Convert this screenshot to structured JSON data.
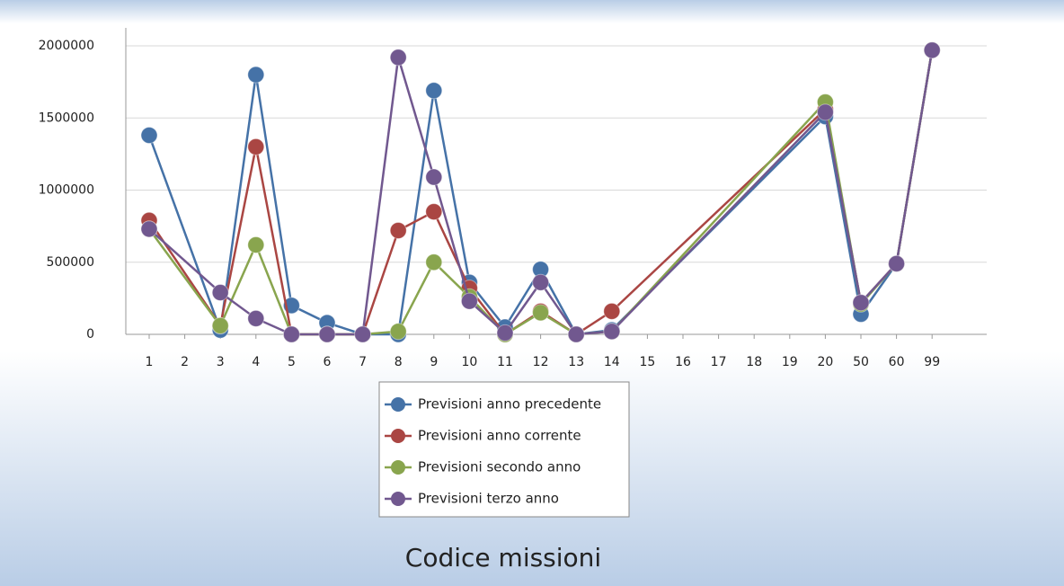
{
  "chart_data": {
    "type": "line",
    "xlabel": "Codice missioni",
    "categories": [
      "1",
      "2",
      "3",
      "4",
      "5",
      "6",
      "7",
      "8",
      "9",
      "10",
      "11",
      "12",
      "13",
      "14",
      "15",
      "16",
      "17",
      "18",
      "19",
      "20",
      "50",
      "60",
      "99"
    ],
    "ylim": [
      0,
      2000000
    ],
    "yticks": [
      0,
      500000,
      1000000,
      1500000,
      2000000
    ],
    "grid": true,
    "connect_gaps": true,
    "series": [
      {
        "name": "Previsioni anno precedente",
        "color": "#4572a7",
        "values": [
          1380000,
          null,
          30000,
          1800000,
          200000,
          80000,
          0,
          0,
          1690000,
          360000,
          50000,
          450000,
          0,
          30000,
          null,
          null,
          null,
          null,
          null,
          1510000,
          140000,
          490000,
          1970000
        ]
      },
      {
        "name": "Previsioni anno corrente",
        "color": "#aa4643",
        "values": [
          790000,
          null,
          60000,
          1300000,
          0,
          0,
          0,
          720000,
          850000,
          320000,
          0,
          160000,
          0,
          160000,
          null,
          null,
          null,
          null,
          null,
          1560000,
          220000,
          490000,
          1970000
        ]
      },
      {
        "name": "Previsioni secondo anno",
        "color": "#89a54e",
        "values": [
          730000,
          null,
          60000,
          620000,
          0,
          0,
          0,
          20000,
          500000,
          260000,
          0,
          150000,
          0,
          20000,
          null,
          null,
          null,
          null,
          null,
          1610000,
          210000,
          490000,
          1970000
        ]
      },
      {
        "name": "Previsioni terzo anno",
        "color": "#71588f",
        "values": [
          730000,
          null,
          290000,
          110000,
          0,
          0,
          0,
          1920000,
          1090000,
          230000,
          10000,
          360000,
          0,
          20000,
          null,
          null,
          null,
          null,
          null,
          1540000,
          220000,
          490000,
          1970000
        ]
      }
    ]
  }
}
